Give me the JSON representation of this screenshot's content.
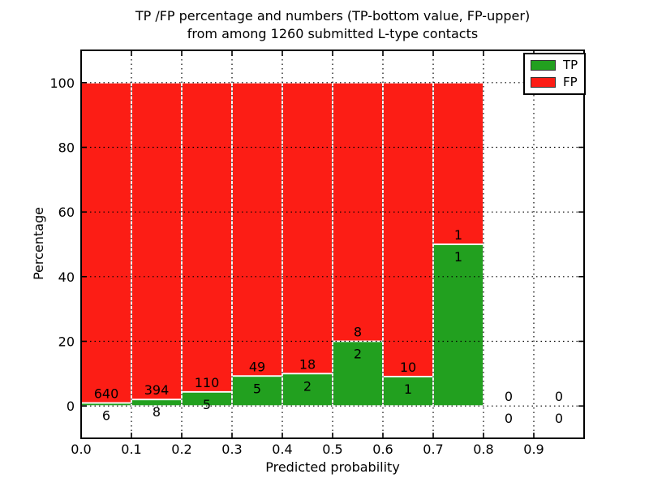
{
  "chart_data": {
    "type": "bar",
    "stacked": true,
    "normalized_to_percent": true,
    "title_line1": "TP /FP percentage and numbers (TP-bottom value, FP-upper)",
    "title_line2": "from among 1260 submitted L-type contacts",
    "xlabel": "Predicted probability",
    "ylabel": "Percentage",
    "xlim": [
      0.0,
      1.0
    ],
    "ylim": [
      -10,
      110
    ],
    "grid": "dotted, drawn above bars",
    "x_ticks": [
      {
        "label": "0.0",
        "value": 0.0
      },
      {
        "label": "0.1",
        "value": 0.1
      },
      {
        "label": "0.2",
        "value": 0.2
      },
      {
        "label": "0.3",
        "value": 0.3
      },
      {
        "label": "0.4",
        "value": 0.4
      },
      {
        "label": "0.5",
        "value": 0.5
      },
      {
        "label": "0.6",
        "value": 0.6
      },
      {
        "label": "0.7",
        "value": 0.7
      },
      {
        "label": "0.8",
        "value": 0.8
      },
      {
        "label": "0.9",
        "value": 0.9
      }
    ],
    "y_ticks": [
      {
        "label": "0",
        "value": 0
      },
      {
        "label": "20",
        "value": 20
      },
      {
        "label": "40",
        "value": 40
      },
      {
        "label": "60",
        "value": 60
      },
      {
        "label": "80",
        "value": 80
      },
      {
        "label": "100",
        "value": 100
      }
    ],
    "legend": {
      "position": "upper right",
      "entries": [
        {
          "label": "TP",
          "color": "#22a01f"
        },
        {
          "label": "FP",
          "color": "#fc1d15"
        }
      ]
    },
    "bins": [
      {
        "x_start": 0.0,
        "x_end": 0.1,
        "tp": 6,
        "fp": 640
      },
      {
        "x_start": 0.1,
        "x_end": 0.2,
        "tp": 8,
        "fp": 394
      },
      {
        "x_start": 0.2,
        "x_end": 0.3,
        "tp": 5,
        "fp": 110
      },
      {
        "x_start": 0.3,
        "x_end": 0.4,
        "tp": 5,
        "fp": 49
      },
      {
        "x_start": 0.4,
        "x_end": 0.5,
        "tp": 2,
        "fp": 18
      },
      {
        "x_start": 0.5,
        "x_end": 0.6,
        "tp": 2,
        "fp": 8
      },
      {
        "x_start": 0.6,
        "x_end": 0.7,
        "tp": 1,
        "fp": 10
      },
      {
        "x_start": 0.7,
        "x_end": 0.8,
        "tp": 1,
        "fp": 1
      },
      {
        "x_start": 0.8,
        "x_end": 0.9,
        "tp": 0,
        "fp": 0
      },
      {
        "x_start": 0.9,
        "x_end": 1.0,
        "tp": 0,
        "fp": 0
      }
    ],
    "colors": {
      "tp": "#22a01f",
      "fp": "#fc1d15",
      "bar_edge": "#ffffff",
      "grid": "#000000",
      "frame": "#000000",
      "text": "#000000",
      "background": "#ffffff"
    }
  }
}
